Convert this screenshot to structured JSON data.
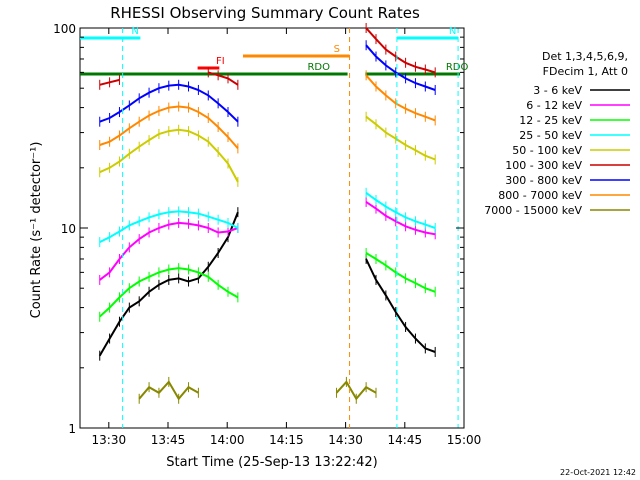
{
  "chart_data": {
    "type": "line",
    "title": "RHESSI Observing Summary Count Rates",
    "xlabel": "Start Time (25-Sep-13 13:22:42)",
    "ylabel": "Count Rate (s⁻¹ detector⁻¹)",
    "y_scale": "log",
    "ylim": [
      1,
      100
    ],
    "xlim": [
      "13:22:42",
      "15:00:00"
    ],
    "x_ticks": [
      "13:30",
      "13:45",
      "14:00",
      "14:15",
      "14:30",
      "14:45",
      "15:00"
    ],
    "y_ticks": [
      "1",
      "10",
      "100"
    ],
    "legend_header": [
      "Det 1,3,4,5,6,9,",
      "FDecim 1, Att 0"
    ],
    "legend_position": "right",
    "timestamp": "22-Oct-2021 12:42",
    "flags": [
      {
        "label": "N",
        "color": "#00ffff",
        "t_start": "13:22:42",
        "t_end": "13:38:00",
        "level": 0.975
      },
      {
        "label": "N",
        "color": "#00ffff",
        "t_start": "14:43:00",
        "t_end": "14:58:30",
        "level": 0.975
      },
      {
        "label": "RDO",
        "color": "#007700",
        "t_start": "13:22:42",
        "t_end": "14:30:30",
        "level": 0.885
      },
      {
        "label": "RDO",
        "color": "#007700",
        "t_start": "14:35:00",
        "t_end": "14:59:00",
        "level": 0.885
      },
      {
        "label": "FI",
        "color": "#ff0000",
        "t_start": "13:52:30",
        "t_end": "13:58:00",
        "level": 0.9
      },
      {
        "label": "S",
        "color": "#ff8800",
        "t_start": "14:04:00",
        "t_end": "14:31:00",
        "level": 0.93
      }
    ],
    "vertical_markers": [
      {
        "time": "13:33:30",
        "color": "#00ffff"
      },
      {
        "time": "14:43:00",
        "color": "#00ffff"
      },
      {
        "time": "14:58:30",
        "color": "#00ffff"
      },
      {
        "time": "14:31:00",
        "color": "#ff8800"
      }
    ],
    "series": [
      {
        "name": "3 - 6 keV",
        "color": "#000000",
        "values": [
          2.3,
          2.8,
          3.4,
          4.0,
          4.3,
          4.8,
          5.2,
          5.5,
          5.6,
          5.4,
          5.6,
          6.4,
          7.5,
          9.0,
          12.0,
          0,
          0,
          0,
          0,
          0,
          0,
          0,
          0,
          0,
          0,
          0,
          0,
          7.0,
          5.5,
          4.6,
          3.8,
          3.2,
          2.8,
          2.5,
          2.4
        ]
      },
      {
        "name": "6 - 12 keV",
        "color": "#ff00ff",
        "values": [
          5.5,
          6.0,
          7.0,
          8.0,
          8.8,
          9.5,
          10.0,
          10.4,
          10.6,
          10.5,
          10.3,
          10.0,
          9.5,
          9.6,
          10.0,
          0,
          0,
          0,
          0,
          0,
          0,
          0,
          0,
          0,
          0,
          0,
          0,
          13.5,
          12.5,
          11.5,
          10.8,
          10.2,
          9.8,
          9.5,
          9.3
        ]
      },
      {
        "name": "12 - 25 keV",
        "color": "#00ff00",
        "values": [
          3.6,
          4.0,
          4.5,
          5.0,
          5.4,
          5.7,
          6.0,
          6.2,
          6.3,
          6.2,
          6.0,
          5.7,
          5.2,
          4.8,
          4.5,
          0,
          0,
          0,
          0,
          0,
          0,
          0,
          0,
          0,
          0,
          0,
          0,
          7.5,
          7.0,
          6.5,
          6.0,
          5.6,
          5.3,
          5.0,
          4.8
        ]
      },
      {
        "name": "25 - 50 keV",
        "color": "#00ffff",
        "values": [
          8.5,
          9.0,
          9.6,
          10.3,
          10.8,
          11.3,
          11.7,
          12.0,
          12.1,
          12.0,
          11.8,
          11.4,
          11.0,
          10.6,
          10.0,
          0,
          0,
          0,
          0,
          0,
          0,
          0,
          0,
          0,
          0,
          0,
          0,
          15.0,
          13.8,
          12.8,
          12.0,
          11.3,
          10.8,
          10.4,
          10.0
        ]
      },
      {
        "name": "50 - 100 keV",
        "color": "#cccc00",
        "values": [
          19.0,
          20.0,
          21.5,
          23.5,
          25.5,
          27.5,
          29.5,
          30.5,
          31.0,
          30.5,
          29.0,
          27.0,
          24.0,
          21.0,
          17.0,
          0,
          0,
          0,
          0,
          0,
          0,
          0,
          0,
          0,
          0,
          0,
          0,
          36.0,
          33.0,
          30.0,
          28.0,
          26.0,
          24.5,
          23.0,
          22.0
        ]
      },
      {
        "name": "100 - 300 keV",
        "color": "#cc0000",
        "values": [
          52.0,
          53.5,
          55.0,
          0,
          0,
          0,
          0,
          0,
          0,
          0,
          0,
          60.0,
          58.0,
          56.0,
          52.0,
          0,
          0,
          0,
          0,
          0,
          0,
          0,
          0,
          0,
          0,
          0,
          0,
          100.0,
          88.0,
          78.0,
          72.0,
          67.0,
          64.0,
          62.0,
          60.0
        ]
      },
      {
        "name": "300 - 800 keV",
        "color": "#0000ff",
        "values": [
          34.0,
          35.5,
          38.0,
          41.0,
          44.5,
          47.5,
          50.0,
          51.5,
          52.0,
          51.0,
          49.0,
          46.0,
          42.0,
          38.0,
          34.0,
          0,
          0,
          0,
          0,
          0,
          0,
          0,
          0,
          0,
          0,
          0,
          0,
          82.0,
          72.0,
          65.0,
          60.0,
          56.0,
          53.0,
          51.0,
          49.0
        ]
      },
      {
        "name": "800 - 7000 keV",
        "color": "#ff8800",
        "values": [
          26.0,
          27.0,
          29.0,
          31.5,
          34.0,
          36.5,
          38.5,
          40.0,
          40.5,
          40.0,
          38.0,
          35.5,
          32.0,
          28.5,
          25.0,
          0,
          0,
          0,
          0,
          0,
          0,
          0,
          0,
          0,
          0,
          0,
          0,
          58.0,
          51.0,
          46.0,
          42.0,
          39.5,
          37.5,
          36.0,
          34.5
        ]
      },
      {
        "name": "7000 - 15000 keV",
        "color": "#888800",
        "values": [
          0,
          0,
          0,
          0,
          1.4,
          1.6,
          1.5,
          1.7,
          1.4,
          1.6,
          1.5,
          0,
          0,
          0,
          0,
          0,
          0,
          0,
          0,
          0,
          0,
          0,
          0,
          0,
          1.5,
          1.7,
          1.4,
          1.6,
          1.5,
          0,
          0,
          0,
          0,
          0,
          0
        ]
      }
    ],
    "x_minutes": [
      5,
      7.5,
      10,
      12.5,
      15,
      17.5,
      20,
      22.5,
      25,
      27.5,
      30,
      32.5,
      35,
      37.5,
      40,
      42.5,
      45,
      47.5,
      50,
      52.5,
      55,
      57.5,
      60,
      62.5,
      65,
      67.5,
      70,
      72.5,
      75,
      77.5,
      80,
      82.5,
      85,
      87.5,
      90
    ]
  }
}
